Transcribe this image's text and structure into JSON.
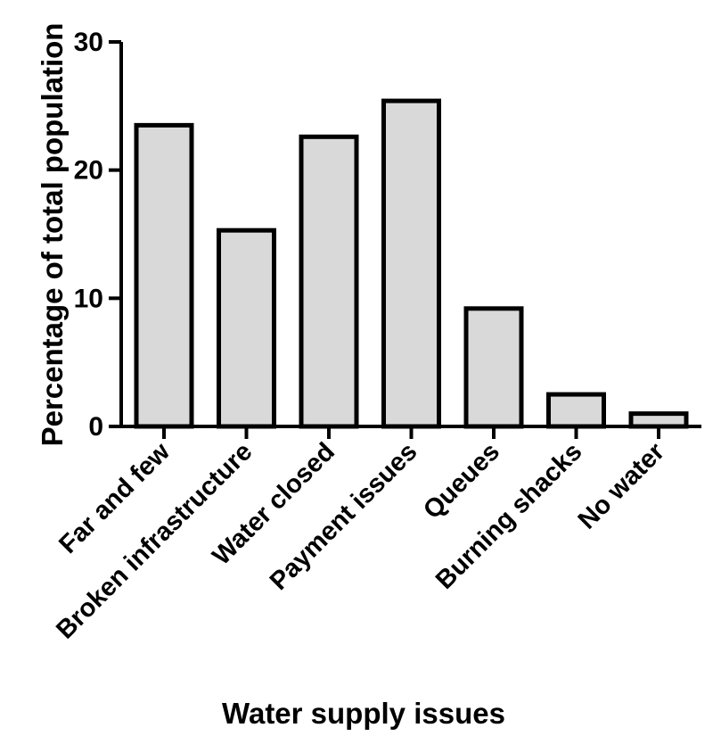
{
  "chart_data": {
    "type": "bar",
    "categories": [
      "Far and few",
      "Broken infrastructure",
      "Water closed",
      "Payment issues",
      "Queues",
      "Burning shacks",
      "No water"
    ],
    "values": [
      23.5,
      15.3,
      22.6,
      25.4,
      9.2,
      2.5,
      1.0
    ],
    "xlabel": "Water supply issues",
    "ylabel": "Percentage of total population",
    "ylim": [
      0,
      30
    ],
    "yticks": [
      0,
      10,
      20,
      30
    ],
    "grid": false,
    "colors": {
      "bar_fill": "#d9d9d9",
      "bar_stroke": "#000000"
    }
  }
}
